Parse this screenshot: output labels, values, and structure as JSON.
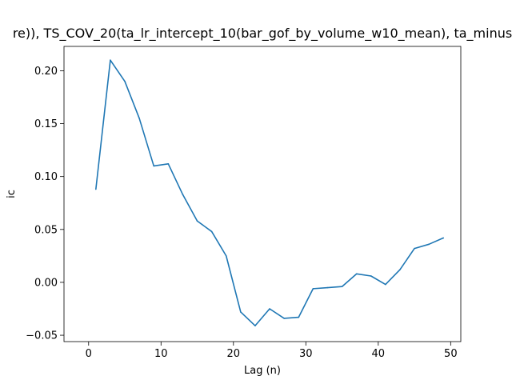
{
  "chart_data": {
    "type": "line",
    "title": "re)), TS_COV_20(ta_lr_intercept_10(bar_gof_by_volume_w10_mean), ta_minus",
    "xlabel": "Lag (n)",
    "ylabel": "ic",
    "xlim": [
      -3.4,
      51.4
    ],
    "ylim": [
      -0.056,
      0.223
    ],
    "xticks": [
      0,
      10,
      20,
      30,
      40,
      50
    ],
    "yticks": [
      -0.05,
      0.0,
      0.05,
      0.1,
      0.15,
      0.2
    ],
    "xtick_labels": [
      "0",
      "10",
      "20",
      "30",
      "40",
      "50"
    ],
    "ytick_labels": [
      "−0.05",
      "0.00",
      "0.05",
      "0.10",
      "0.15",
      "0.20"
    ],
    "grid": false,
    "legend": "none",
    "series": [
      {
        "color": "#1f77b4",
        "x": [
          1,
          3,
          5,
          7,
          9,
          11,
          13,
          15,
          17,
          19,
          21,
          23,
          25,
          27,
          29,
          31,
          33,
          35,
          37,
          39,
          41,
          43,
          45,
          47,
          49
        ],
        "y": [
          0.088,
          0.21,
          0.19,
          0.155,
          0.11,
          0.112,
          0.083,
          0.058,
          0.048,
          0.025,
          -0.028,
          -0.041,
          -0.025,
          -0.034,
          -0.033,
          -0.006,
          -0.005,
          -0.004,
          0.008,
          0.006,
          -0.002,
          0.012,
          0.032,
          0.036,
          0.042
        ]
      }
    ]
  }
}
